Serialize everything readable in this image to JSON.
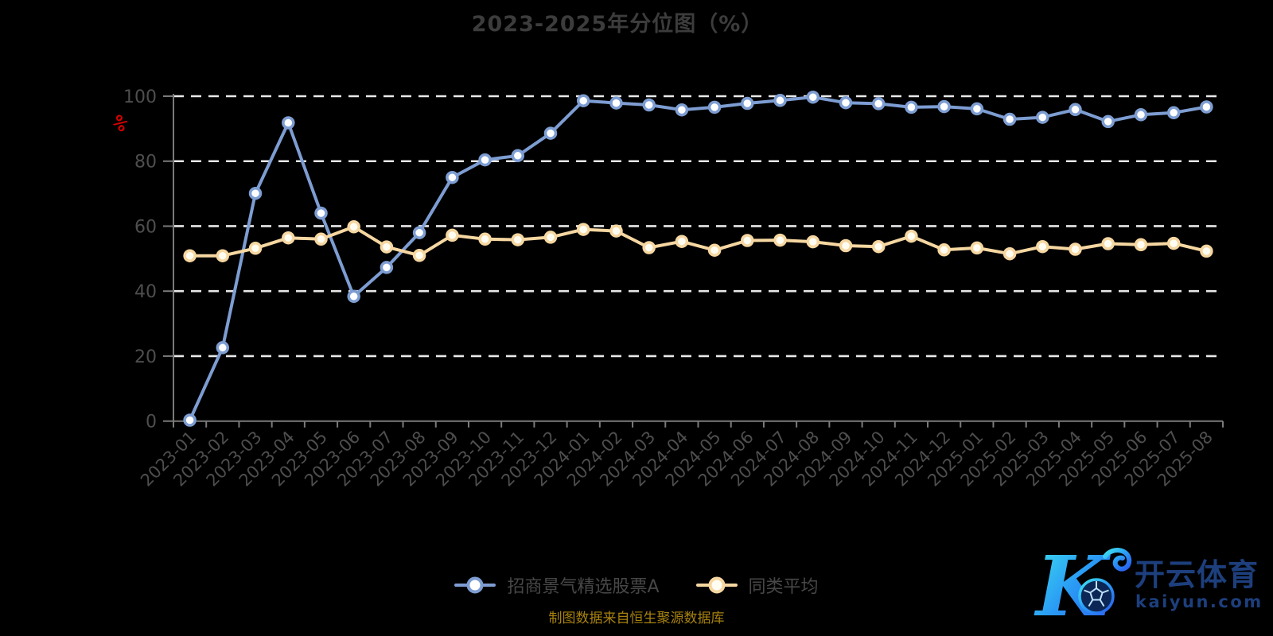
{
  "title": "2023-2025年分位图（%）",
  "y_axis": {
    "unit": "%",
    "min": 0,
    "max": 100,
    "ticks": [
      0,
      20,
      40,
      60,
      80,
      100
    ]
  },
  "footer": {
    "source_note": "制图数据来自恒生聚源数据库"
  },
  "logo": {
    "brand": "开云体育",
    "domain": "kaiyun.com"
  },
  "chart_data": {
    "type": "line",
    "title": "2023-2025年分位图（%）",
    "xlabel": "",
    "ylabel": "%",
    "ylim": [
      0,
      100
    ],
    "yticks": [
      0,
      20,
      40,
      60,
      80,
      100
    ],
    "grid": "horizontal dashed white lines",
    "legend_position": "bottom center",
    "background": "#000000",
    "categories": [
      "2023-01",
      "2023-02",
      "2023-03",
      "2023-04",
      "2023-05",
      "2023-06",
      "2023-07",
      "2023-08",
      "2023-09",
      "2023-10",
      "2023-11",
      "2023-12",
      "2024-01",
      "2024-02",
      "2024-03",
      "2024-04",
      "2024-05",
      "2024-06",
      "2024-07",
      "2024-08",
      "2024-09",
      "2024-10",
      "2024-11",
      "2024-12",
      "2025-01",
      "2025-02",
      "2025-03",
      "2025-04",
      "2025-05",
      "2025-06",
      "2025-07",
      "2025-08"
    ],
    "series": [
      {
        "name": "招商景气精选股票A",
        "color": "#7d9dd2",
        "marker_fill": "#ffffff",
        "values": [
          0.3,
          22.6,
          70.1,
          91.8,
          64.0,
          38.4,
          47.3,
          58.0,
          75.0,
          80.4,
          81.7,
          88.6,
          98.6,
          97.9,
          97.3,
          95.8,
          96.6,
          97.8,
          98.7,
          99.7,
          98.0,
          97.7,
          96.6,
          96.8,
          96.1,
          92.9,
          93.5,
          95.9,
          92.2,
          94.3,
          94.9,
          96.7
        ]
      },
      {
        "name": "同类平均",
        "color": "#f6d7a1",
        "marker_fill": "#fffdf2",
        "values": [
          50.9,
          50.9,
          53.2,
          56.4,
          56.0,
          59.8,
          53.6,
          51.0,
          57.2,
          56.0,
          55.8,
          56.6,
          59.0,
          58.5,
          53.4,
          55.3,
          52.6,
          55.6,
          55.7,
          55.2,
          54.0,
          53.7,
          56.9,
          52.7,
          53.3,
          51.5,
          53.7,
          52.9,
          54.6,
          54.3,
          54.7,
          52.3
        ]
      }
    ]
  }
}
